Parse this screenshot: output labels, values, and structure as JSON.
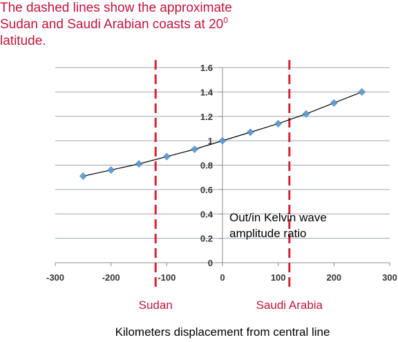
{
  "note": {
    "line1": "The dashed lines show the approximate",
    "line2_pre": "Sudan and Saudi Arabian coasts at 20",
    "line2_sup": "0",
    "line3": "latitude."
  },
  "chart_data": {
    "type": "scatter",
    "title": "",
    "xlabel": "Kilometers displacement from central line",
    "ylabel": "",
    "xlim": [
      -300,
      300
    ],
    "ylim": [
      0,
      1.6
    ],
    "xticks": [
      "-300",
      "-200",
      "-100",
      "0",
      "100",
      "200",
      "300"
    ],
    "yticks": [
      "0",
      "0.2",
      "0.4",
      "0.6",
      "0.8",
      "1",
      "1.2",
      "1.4",
      "1.6"
    ],
    "grid": true,
    "series": [
      {
        "marker": "diamond",
        "color": "#5b9bd5",
        "line_color": "#000000",
        "x": [
          -250,
          -200,
          -150,
          -100,
          -50,
          0,
          50,
          100,
          150,
          200,
          250
        ],
        "y": [
          0.71,
          0.76,
          0.81,
          0.87,
          0.93,
          1.0,
          1.07,
          1.14,
          1.22,
          1.31,
          1.4
        ]
      }
    ],
    "annotation": {
      "line1": "Out/in Kelvin wave",
      "line2": "amplitude ratio"
    },
    "coast_lines": [
      {
        "label": "Sudan",
        "x": -120,
        "color": "#d9202e"
      },
      {
        "label": "Saudi Arabia",
        "x": 120,
        "color": "#d9202e"
      }
    ]
  }
}
